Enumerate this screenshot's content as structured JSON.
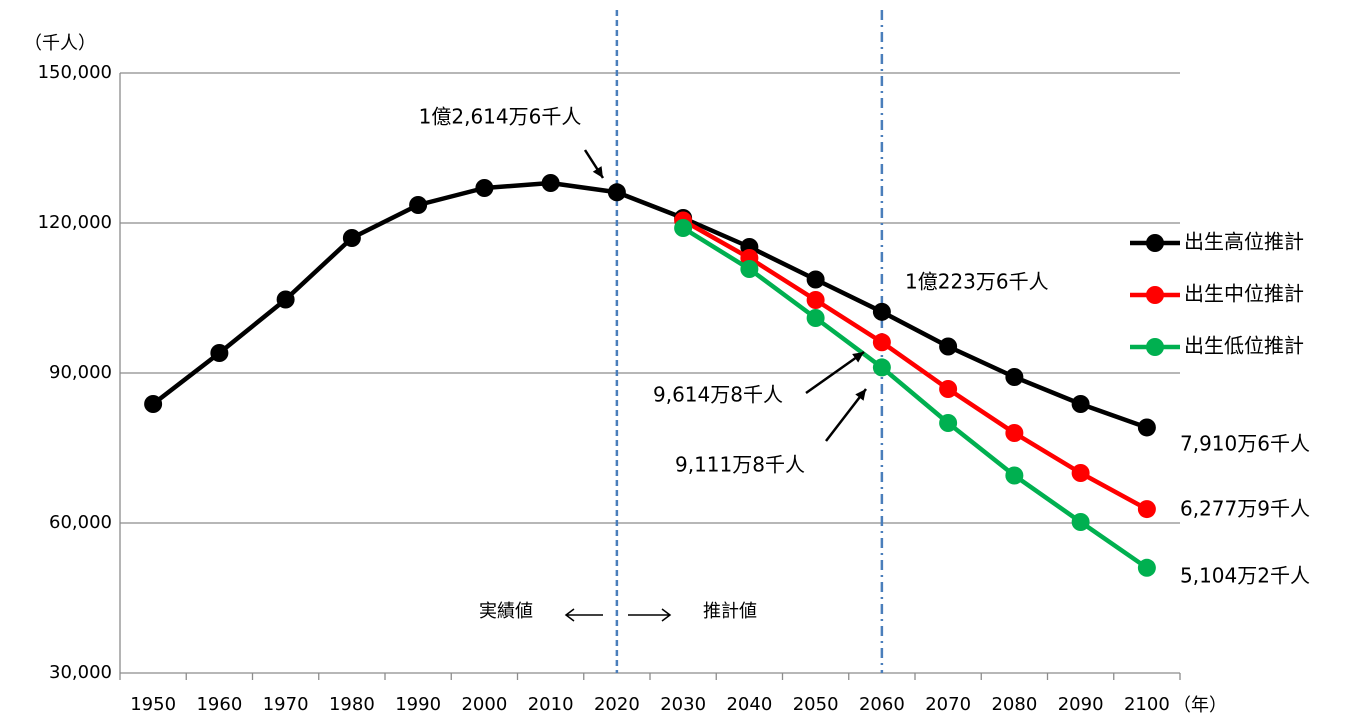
{
  "chart_data": {
    "type": "line",
    "y_label": "（千人）",
    "x_label": "（年）",
    "categories": [
      "1950",
      "1960",
      "1970",
      "1980",
      "1990",
      "2000",
      "2010",
      "2020",
      "2030",
      "2040",
      "2050",
      "2060",
      "2070",
      "2080",
      "2090",
      "2100"
    ],
    "series": [
      {
        "name": "出生高位推計",
        "color": "#000000",
        "values": [
          83800,
          94000,
          104700,
          117000,
          123600,
          127000,
          128000,
          126146,
          121000,
          115200,
          108700,
          102236,
          95300,
          89200,
          83800,
          79106
        ],
        "value_labels": [
          null,
          null,
          null,
          null,
          null,
          null,
          null,
          "1億2,614万6千人",
          null,
          null,
          null,
          "1億223万6千人",
          null,
          null,
          null,
          "7,910万6千人"
        ]
      },
      {
        "name": "出生中位推計",
        "color": "#ff0000",
        "values": [
          null,
          null,
          null,
          null,
          null,
          null,
          null,
          null,
          120500,
          113000,
          104600,
          96148,
          86800,
          78000,
          70000,
          62779
        ],
        "value_labels": [
          null,
          null,
          null,
          null,
          null,
          null,
          null,
          null,
          null,
          null,
          null,
          "9,614万8千人",
          null,
          null,
          null,
          "6,277万9千人"
        ]
      },
      {
        "name": "出生低位推計",
        "color": "#00b050",
        "values": [
          null,
          null,
          null,
          null,
          null,
          null,
          null,
          null,
          119000,
          110800,
          101000,
          91118,
          80000,
          69500,
          60200,
          51042
        ],
        "value_labels": [
          null,
          null,
          null,
          null,
          null,
          null,
          null,
          null,
          null,
          null,
          null,
          "9,111万8千人",
          null,
          null,
          null,
          "5,104万2千人"
        ]
      }
    ],
    "ylim": [
      30000,
      150000
    ],
    "yticks": [
      {
        "value": 30000,
        "label": "30,000"
      },
      {
        "value": 60000,
        "label": "60,000"
      },
      {
        "value": 90000,
        "label": "90,000"
      },
      {
        "value": 120000,
        "label": "120,000"
      },
      {
        "value": 150000,
        "label": "150,000"
      }
    ],
    "grid": true,
    "legend": "right",
    "vlines": [
      {
        "category": "2020",
        "color": "#4a7ebb",
        "style": "dashed"
      },
      {
        "category": "2060",
        "color": "#4a7ebb",
        "style": "dashdot"
      }
    ],
    "annotations": [
      "実績値",
      "推計値"
    ]
  }
}
